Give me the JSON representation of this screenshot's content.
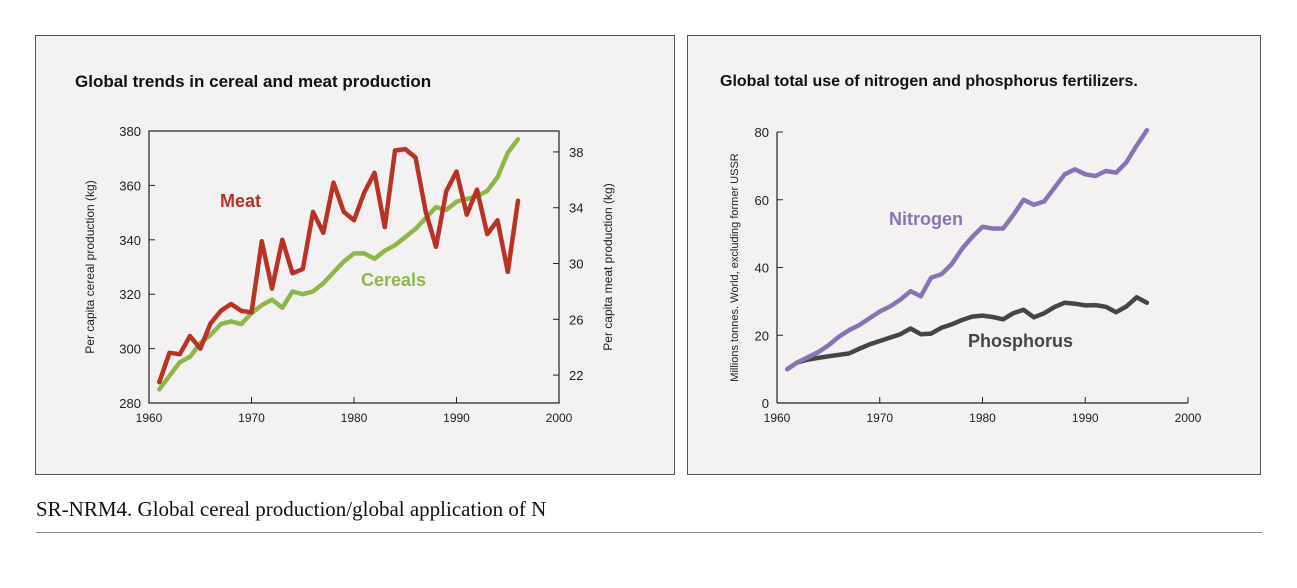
{
  "caption": "SR-NRM4. Global cereal production/global application of N",
  "colors": {
    "meat": "#b83226",
    "cereals": "#8db849",
    "nitrogen": "#8a73b5",
    "phosphorus": "#454545",
    "panel_bg": "#f3f1f1"
  },
  "chart_data": [
    {
      "type": "line",
      "title": "Global trends in cereal and meat production",
      "xlabel": "",
      "ylabel": "Per capita cereal production (kg)",
      "y2label": "Per capita meat production (kg)",
      "xlim": [
        1960,
        2000
      ],
      "ylim": [
        280,
        380
      ],
      "y2lim": [
        20,
        39.5
      ],
      "x_ticks": [
        1960,
        1970,
        1980,
        1990,
        2000
      ],
      "y_ticks": [
        280,
        300,
        320,
        340,
        360,
        380
      ],
      "y2_ticks": [
        22,
        26,
        30,
        34,
        38
      ],
      "grid": false,
      "series": [
        {
          "name": "Meat",
          "axis": "right",
          "x": [
            1961,
            1962,
            1963,
            1964,
            1965,
            1966,
            1967,
            1968,
            1969,
            1970,
            1971,
            1972,
            1973,
            1974,
            1975,
            1976,
            1977,
            1978,
            1979,
            1980,
            1981,
            1982,
            1983,
            1984,
            1985,
            1986,
            1987,
            1988,
            1989,
            1990,
            1991,
            1992,
            1993,
            1994,
            1995,
            1996
          ],
          "values": [
            21.5,
            23.6,
            23.5,
            24.8,
            23.9,
            25.7,
            26.6,
            27.1,
            26.6,
            26.5,
            31.6,
            28.2,
            31.7,
            29.3,
            29.6,
            33.7,
            32.2,
            35.8,
            33.7,
            33.1,
            35.1,
            36.5,
            32.6,
            38.1,
            38.2,
            37.6,
            33.7,
            31.2,
            35.2,
            36.6,
            33.5,
            35.3,
            32.1,
            33.1,
            29.4,
            34.5
          ]
        },
        {
          "name": "Cereals",
          "axis": "left",
          "x": [
            1961,
            1962,
            1963,
            1964,
            1965,
            1966,
            1967,
            1968,
            1969,
            1970,
            1971,
            1972,
            1973,
            1974,
            1975,
            1976,
            1977,
            1978,
            1979,
            1980,
            1981,
            1982,
            1983,
            1984,
            1985,
            1986,
            1987,
            1988,
            1989,
            1990,
            1991,
            1992,
            1993,
            1994,
            1995,
            1996
          ],
          "values": [
            285,
            290,
            295,
            297,
            302,
            305,
            309,
            310,
            309,
            313,
            316,
            318,
            315,
            321,
            320,
            321,
            324,
            328,
            332,
            335,
            335,
            333,
            336,
            338,
            341,
            344,
            348,
            352,
            351,
            354,
            355,
            356,
            358,
            363,
            372,
            377
          ]
        }
      ],
      "annotations": [
        "Meat",
        "Cereals"
      ]
    },
    {
      "type": "line",
      "title": "Global total use of nitrogen and phosphorus fertilizers.",
      "xlabel": "",
      "ylabel": "Millions tonnes. World, excluding former USSR",
      "xlim": [
        1960,
        2000
      ],
      "ylim": [
        0,
        80
      ],
      "x_ticks": [
        1960,
        1970,
        1980,
        1990,
        2000
      ],
      "y_ticks": [
        0,
        20,
        40,
        60,
        80
      ],
      "grid": false,
      "series": [
        {
          "name": "Nitrogen",
          "x": [
            1961,
            1962,
            1963,
            1964,
            1965,
            1966,
            1967,
            1968,
            1969,
            1970,
            1971,
            1972,
            1973,
            1974,
            1975,
            1976,
            1977,
            1978,
            1979,
            1980,
            1981,
            1982,
            1983,
            1984,
            1985,
            1986,
            1987,
            1988,
            1989,
            1990,
            1991,
            1992,
            1993,
            1994,
            1995,
            1996
          ],
          "values": [
            10,
            12,
            13.5,
            15,
            17,
            19.5,
            21.5,
            23,
            25,
            27,
            28.5,
            30.5,
            33,
            31.5,
            37,
            38,
            41,
            45.5,
            49,
            52,
            51.5,
            51.5,
            55.5,
            60,
            58.5,
            59.5,
            63.5,
            67.5,
            69,
            67.5,
            67,
            68.5,
            68,
            71,
            76,
            80.5
          ]
        },
        {
          "name": "Phosphorus",
          "x": [
            1961,
            1962,
            1963,
            1964,
            1965,
            1966,
            1967,
            1968,
            1969,
            1970,
            1971,
            1972,
            1973,
            1974,
            1975,
            1976,
            1977,
            1978,
            1979,
            1980,
            1981,
            1982,
            1983,
            1984,
            1985,
            1986,
            1987,
            1988,
            1989,
            1990,
            1991,
            1992,
            1993,
            1994,
            1995,
            1996
          ],
          "values": [
            10,
            12,
            12.8,
            13.3,
            13.8,
            14.2,
            14.6,
            16,
            17.3,
            18.3,
            19.3,
            20.3,
            22,
            20.3,
            20.5,
            22.2,
            23.2,
            24.5,
            25.5,
            25.8,
            25.4,
            24.7,
            26.5,
            27.5,
            25.3,
            26.5,
            28.3,
            29.6,
            29.3,
            28.8,
            28.9,
            28.4,
            26.8,
            28.5,
            31.2,
            29.6
          ]
        }
      ],
      "annotations": [
        "Nitrogen",
        "Phosphorus"
      ]
    }
  ]
}
